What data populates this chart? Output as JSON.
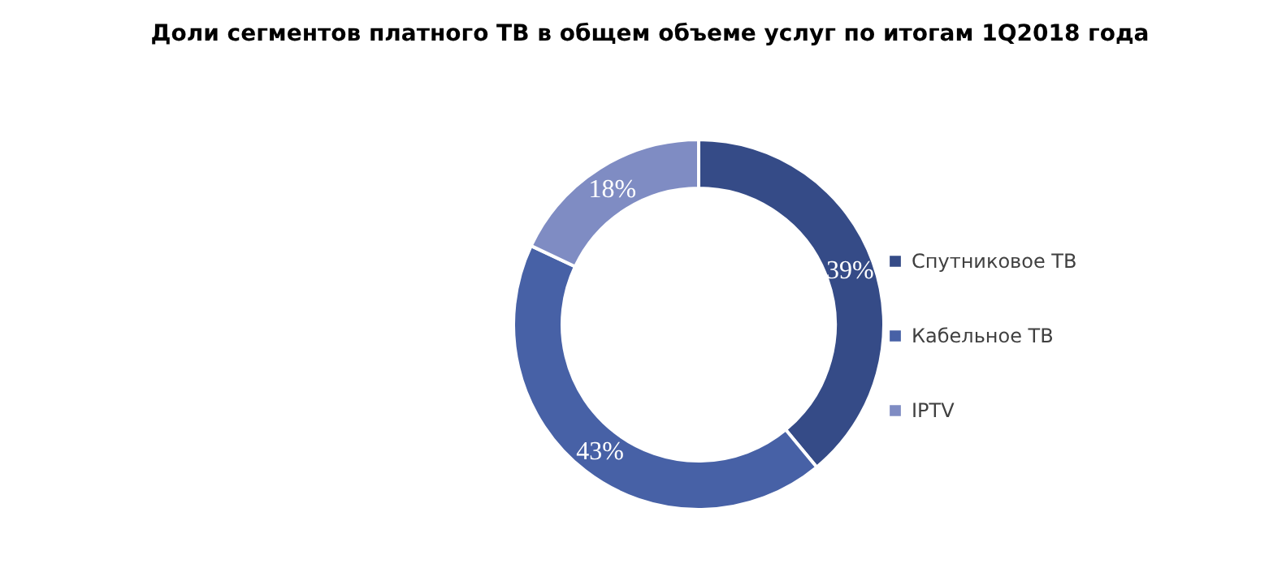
{
  "chart_data": {
    "type": "donut",
    "title": "Доли сегментов платного ТВ в общем объеме услуг по итогам 1Q2018 года",
    "categories": [
      "Спутниковое ТВ",
      "Кабельное ТВ",
      "IPTV"
    ],
    "values": [
      39,
      43,
      18
    ],
    "value_labels": [
      "39%",
      "43%",
      "18%"
    ],
    "colors": [
      "#354b87",
      "#4761a6",
      "#7f8cc3"
    ],
    "legend": "right"
  }
}
